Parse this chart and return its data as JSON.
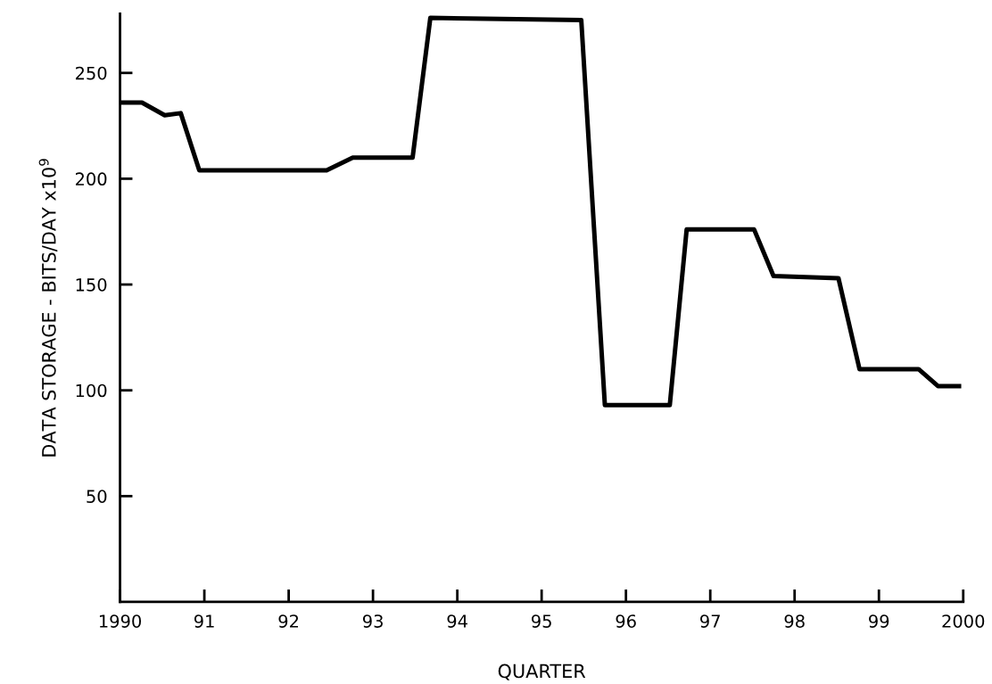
{
  "chart_data": {
    "type": "line",
    "xlabel": "QUARTER",
    "ylabel": "DATA STORAGE - BITS/DAY x10$^{9}$",
    "x": [
      1990.02,
      1990.26,
      1990.53,
      1990.72,
      1990.94,
      1992.45,
      1992.76,
      1993.47,
      1993.68,
      1995.47,
      1995.75,
      1996.52,
      1996.72,
      1997.52,
      1997.75,
      1998.52,
      1998.77,
      1999.47,
      1999.7,
      1999.95
    ],
    "series": [
      {
        "color": "#000000",
        "values": [
          236,
          236,
          230,
          231,
          204,
          204,
          210,
          210,
          276,
          275,
          93,
          93,
          176,
          176,
          154,
          153,
          110,
          110,
          102,
          102
        ]
      }
    ],
    "xlim": [
      1990,
      2000
    ],
    "ylim": [
      0,
      278
    ],
    "xticks": [
      {
        "value": 1990,
        "label": "1990"
      },
      {
        "value": 1991,
        "label": "91"
      },
      {
        "value": 1992,
        "label": "92"
      },
      {
        "value": 1993,
        "label": "93"
      },
      {
        "value": 1994,
        "label": "94"
      },
      {
        "value": 1995,
        "label": "95"
      },
      {
        "value": 1996,
        "label": "96"
      },
      {
        "value": 1997,
        "label": "97"
      },
      {
        "value": 1998,
        "label": "98"
      },
      {
        "value": 1999,
        "label": "99"
      },
      {
        "value": 2000,
        "label": "2000"
      }
    ],
    "yticks": [
      50,
      100,
      150,
      200,
      250
    ],
    "grid": false,
    "marker": "none",
    "line_style": "solid"
  }
}
